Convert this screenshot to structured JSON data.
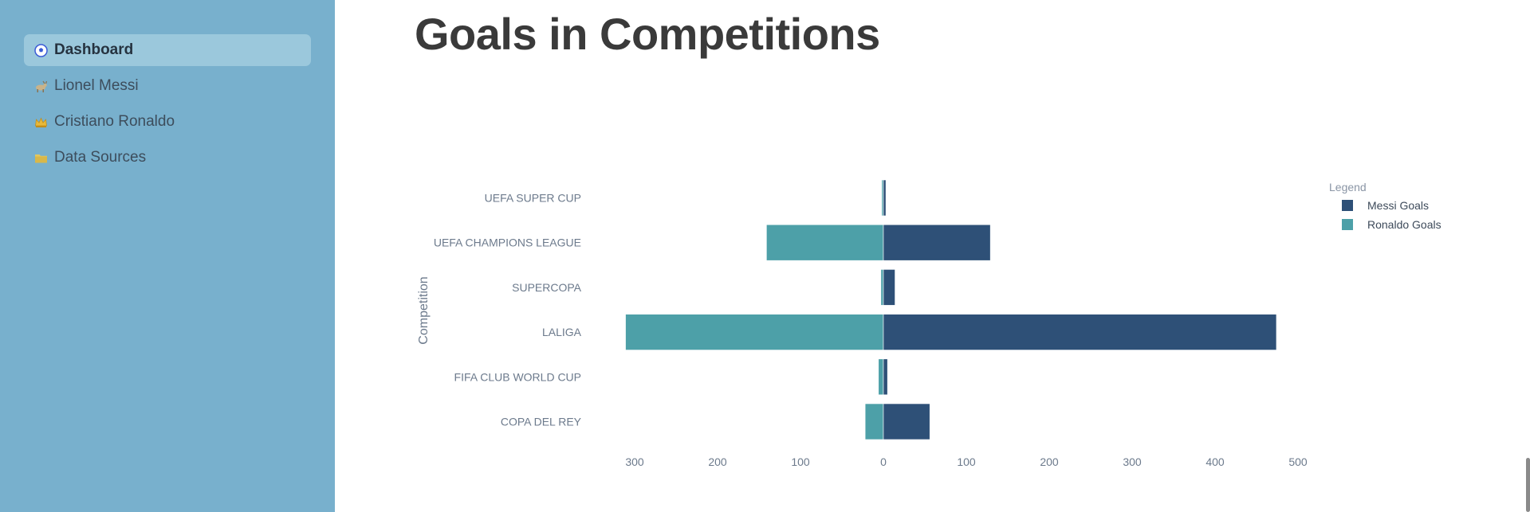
{
  "sidebar": {
    "items": [
      {
        "label": "Dashboard",
        "icon": "soccer-ball-icon",
        "active": true
      },
      {
        "label": "Lionel Messi",
        "icon": "goat-icon",
        "active": false
      },
      {
        "label": "Cristiano Ronaldo",
        "icon": "crown-icon",
        "active": false
      },
      {
        "label": "Data Sources",
        "icon": "folder-icon",
        "active": false
      }
    ]
  },
  "page": {
    "title": "Goals in Competitions"
  },
  "colors": {
    "messi": "#2e5077",
    "ronaldo": "#4da0a8",
    "sidebar": "#78b0cd"
  },
  "chart_data": {
    "type": "bar",
    "orientation": "horizontal-diverging",
    "title": "",
    "ylabel": "Competition",
    "xlabel": "",
    "categories": [
      "UEFA SUPER CUP",
      "UEFA CHAMPIONS LEAGUE",
      "SUPERCOPA",
      "LALIGA",
      "FIFA CLUB WORLD CUP",
      "COPA DEL REY"
    ],
    "series": [
      {
        "name": "Messi Goals",
        "direction": "right",
        "values": [
          3,
          129,
          14,
          474,
          5,
          56
        ]
      },
      {
        "name": "Ronaldo Goals",
        "direction": "left",
        "values": [
          2,
          141,
          3,
          311,
          6,
          22
        ]
      }
    ],
    "xlim": [
      -310,
      510
    ],
    "xticks": [
      -300,
      -200,
      -100,
      0,
      100,
      200,
      300,
      400,
      500
    ],
    "xtick_labels": [
      "300",
      "200",
      "100",
      "0",
      "100",
      "200",
      "300",
      "400",
      "500"
    ],
    "legend": {
      "title": "Legend",
      "position": "top-right",
      "entries": [
        "Messi Goals",
        "Ronaldo Goals"
      ]
    },
    "grid": false
  }
}
